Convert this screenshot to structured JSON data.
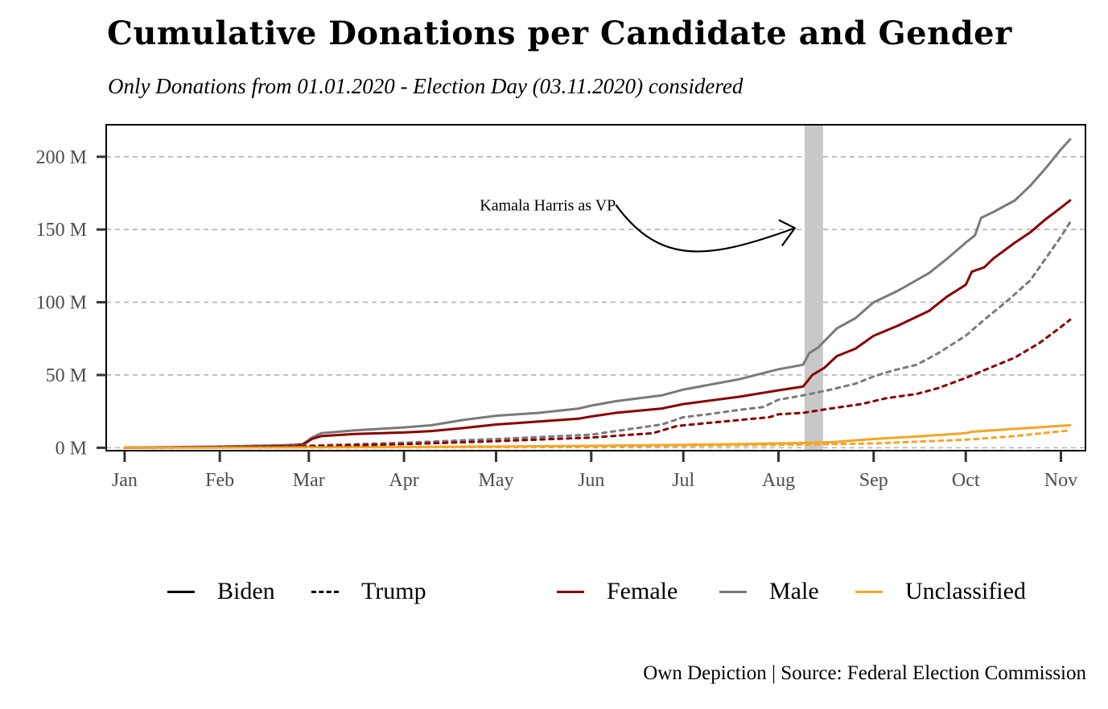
{
  "title": "Cumulative Donations per Candidate and Gender",
  "subtitle": "Only Donations from 01.01.2020 - Election Day (03.11.2020) considered",
  "caption": "Own Depiction | Source: Federal Election Commission",
  "legend": {
    "linetype": [
      {
        "label": "Biden",
        "style": "solid"
      },
      {
        "label": "Trump",
        "style": "dashed"
      }
    ],
    "color": [
      {
        "label": "Female",
        "color": "#8b0000"
      },
      {
        "label": "Male",
        "color": "#7a7a7a"
      },
      {
        "label": "Unclassified",
        "color": "#f5a623"
      }
    ]
  },
  "chart_data": {
    "type": "line",
    "x_unit": "days since 2020-01-01",
    "y_unit": "M",
    "xlim": [
      -6,
      313
    ],
    "ylim": [
      -2,
      222
    ],
    "grid": {
      "y_major": true,
      "x": false
    },
    "x_ticks": [
      {
        "label": "Jan",
        "day": 0
      },
      {
        "label": "Feb",
        "day": 31
      },
      {
        "label": "Mar",
        "day": 60
      },
      {
        "label": "Apr",
        "day": 91
      },
      {
        "label": "May",
        "day": 121
      },
      {
        "label": "Jun",
        "day": 152
      },
      {
        "label": "Jul",
        "day": 182
      },
      {
        "label": "Aug",
        "day": 213
      },
      {
        "label": "Sep",
        "day": 244
      },
      {
        "label": "Oct",
        "day": 274
      },
      {
        "label": "Nov",
        "day": 305
      }
    ],
    "y_ticks": [
      {
        "label": "0 M",
        "value": 0
      },
      {
        "label": "50 M",
        "value": 50
      },
      {
        "label": "100 M",
        "value": 100
      },
      {
        "label": "150 M",
        "value": 150
      },
      {
        "label": "200 M",
        "value": 200
      }
    ],
    "highlight": {
      "from_day": 221.5,
      "to_day": 227.5,
      "color": "#c8c8c8"
    },
    "annotation": {
      "text": "Kamala Harris as VP",
      "text_day": 160,
      "text_value": 167,
      "arrow_to_day": 222,
      "arrow_to_value": 151
    },
    "series": [
      {
        "name": "Biden Male",
        "candidate": "Biden",
        "gender": "Male",
        "color": "#7a7a7a",
        "dash": false,
        "points": [
          [
            0,
            0
          ],
          [
            31,
            0.8
          ],
          [
            52,
            1.8
          ],
          [
            58,
            2.5
          ],
          [
            61,
            7
          ],
          [
            64,
            10
          ],
          [
            75,
            12
          ],
          [
            91,
            14
          ],
          [
            100,
            15.5
          ],
          [
            110,
            19
          ],
          [
            121,
            22
          ],
          [
            135,
            24
          ],
          [
            148,
            27
          ],
          [
            152,
            29
          ],
          [
            160,
            32
          ],
          [
            175,
            36
          ],
          [
            182,
            40
          ],
          [
            200,
            47
          ],
          [
            213,
            54
          ],
          [
            221,
            57
          ],
          [
            223,
            65
          ],
          [
            226,
            69
          ],
          [
            232,
            82
          ],
          [
            238,
            89
          ],
          [
            244,
            100
          ],
          [
            252,
            108
          ],
          [
            262,
            120
          ],
          [
            268,
            130
          ],
          [
            274,
            141
          ],
          [
            277,
            146
          ],
          [
            279,
            158
          ],
          [
            283,
            162
          ],
          [
            290,
            170
          ],
          [
            295,
            180
          ],
          [
            300,
            192
          ],
          [
            305,
            205
          ],
          [
            308,
            212
          ]
        ]
      },
      {
        "name": "Biden Female",
        "candidate": "Biden",
        "gender": "Female",
        "color": "#8b0000",
        "dash": false,
        "points": [
          [
            0,
            0
          ],
          [
            31,
            0.5
          ],
          [
            55,
            1.3
          ],
          [
            58,
            2
          ],
          [
            61,
            6
          ],
          [
            64,
            8
          ],
          [
            75,
            9.5
          ],
          [
            91,
            10.5
          ],
          [
            100,
            11.5
          ],
          [
            110,
            13.5
          ],
          [
            121,
            16
          ],
          [
            135,
            18
          ],
          [
            148,
            20
          ],
          [
            152,
            21.5
          ],
          [
            160,
            24
          ],
          [
            175,
            27
          ],
          [
            182,
            30
          ],
          [
            200,
            35
          ],
          [
            213,
            39.5
          ],
          [
            221,
            42
          ],
          [
            224,
            50
          ],
          [
            228,
            55
          ],
          [
            232,
            63
          ],
          [
            238,
            68
          ],
          [
            244,
            77
          ],
          [
            252,
            84
          ],
          [
            262,
            94
          ],
          [
            268,
            104
          ],
          [
            274,
            112
          ],
          [
            276,
            121
          ],
          [
            280,
            124
          ],
          [
            283,
            130
          ],
          [
            290,
            141
          ],
          [
            295,
            148
          ],
          [
            300,
            157
          ],
          [
            305,
            165
          ],
          [
            308,
            170
          ]
        ]
      },
      {
        "name": "Biden Unclassified",
        "candidate": "Biden",
        "gender": "Unclassified",
        "color": "#f5a623",
        "dash": false,
        "points": [
          [
            0,
            0
          ],
          [
            60,
            0.3
          ],
          [
            121,
            0.8
          ],
          [
            152,
            1.3
          ],
          [
            182,
            2
          ],
          [
            213,
            3
          ],
          [
            230,
            3.8
          ],
          [
            244,
            6
          ],
          [
            260,
            8
          ],
          [
            274,
            10
          ],
          [
            276,
            11
          ],
          [
            290,
            13
          ],
          [
            308,
            15.5
          ]
        ]
      },
      {
        "name": "Trump Male",
        "candidate": "Trump",
        "gender": "Male",
        "color": "#7a7a7a",
        "dash": true,
        "points": [
          [
            0,
            0
          ],
          [
            31,
            0.5
          ],
          [
            60,
            1.5
          ],
          [
            91,
            3.5
          ],
          [
            121,
            6
          ],
          [
            152,
            9
          ],
          [
            165,
            13
          ],
          [
            175,
            16
          ],
          [
            182,
            21
          ],
          [
            190,
            23
          ],
          [
            200,
            26
          ],
          [
            208,
            28
          ],
          [
            213,
            33
          ],
          [
            221,
            36
          ],
          [
            230,
            40
          ],
          [
            238,
            44
          ],
          [
            244,
            49
          ],
          [
            250,
            53
          ],
          [
            258,
            57
          ],
          [
            265,
            65
          ],
          [
            274,
            77
          ],
          [
            280,
            88
          ],
          [
            287,
            100
          ],
          [
            295,
            115
          ],
          [
            300,
            130
          ],
          [
            305,
            145
          ],
          [
            308,
            155
          ]
        ]
      },
      {
        "name": "Trump Female",
        "candidate": "Trump",
        "gender": "Female",
        "color": "#8b0000",
        "dash": true,
        "points": [
          [
            0,
            0
          ],
          [
            31,
            0.3
          ],
          [
            60,
            1
          ],
          [
            91,
            2.5
          ],
          [
            121,
            4.5
          ],
          [
            152,
            7
          ],
          [
            172,
            10
          ],
          [
            180,
            15
          ],
          [
            190,
            17
          ],
          [
            200,
            19
          ],
          [
            210,
            21
          ],
          [
            213,
            23
          ],
          [
            221,
            24
          ],
          [
            230,
            27
          ],
          [
            240,
            30
          ],
          [
            248,
            34
          ],
          [
            258,
            37
          ],
          [
            265,
            41
          ],
          [
            274,
            48
          ],
          [
            282,
            55
          ],
          [
            290,
            62
          ],
          [
            298,
            72
          ],
          [
            305,
            83
          ],
          [
            308,
            88
          ]
        ]
      },
      {
        "name": "Trump Unclassified",
        "candidate": "Trump",
        "gender": "Unclassified",
        "color": "#f5a623",
        "dash": true,
        "points": [
          [
            0,
            0
          ],
          [
            60,
            0.2
          ],
          [
            121,
            0.5
          ],
          [
            152,
            0.9
          ],
          [
            182,
            1.4
          ],
          [
            213,
            2
          ],
          [
            244,
            3
          ],
          [
            274,
            5.5
          ],
          [
            290,
            8
          ],
          [
            308,
            12
          ]
        ]
      }
    ]
  }
}
